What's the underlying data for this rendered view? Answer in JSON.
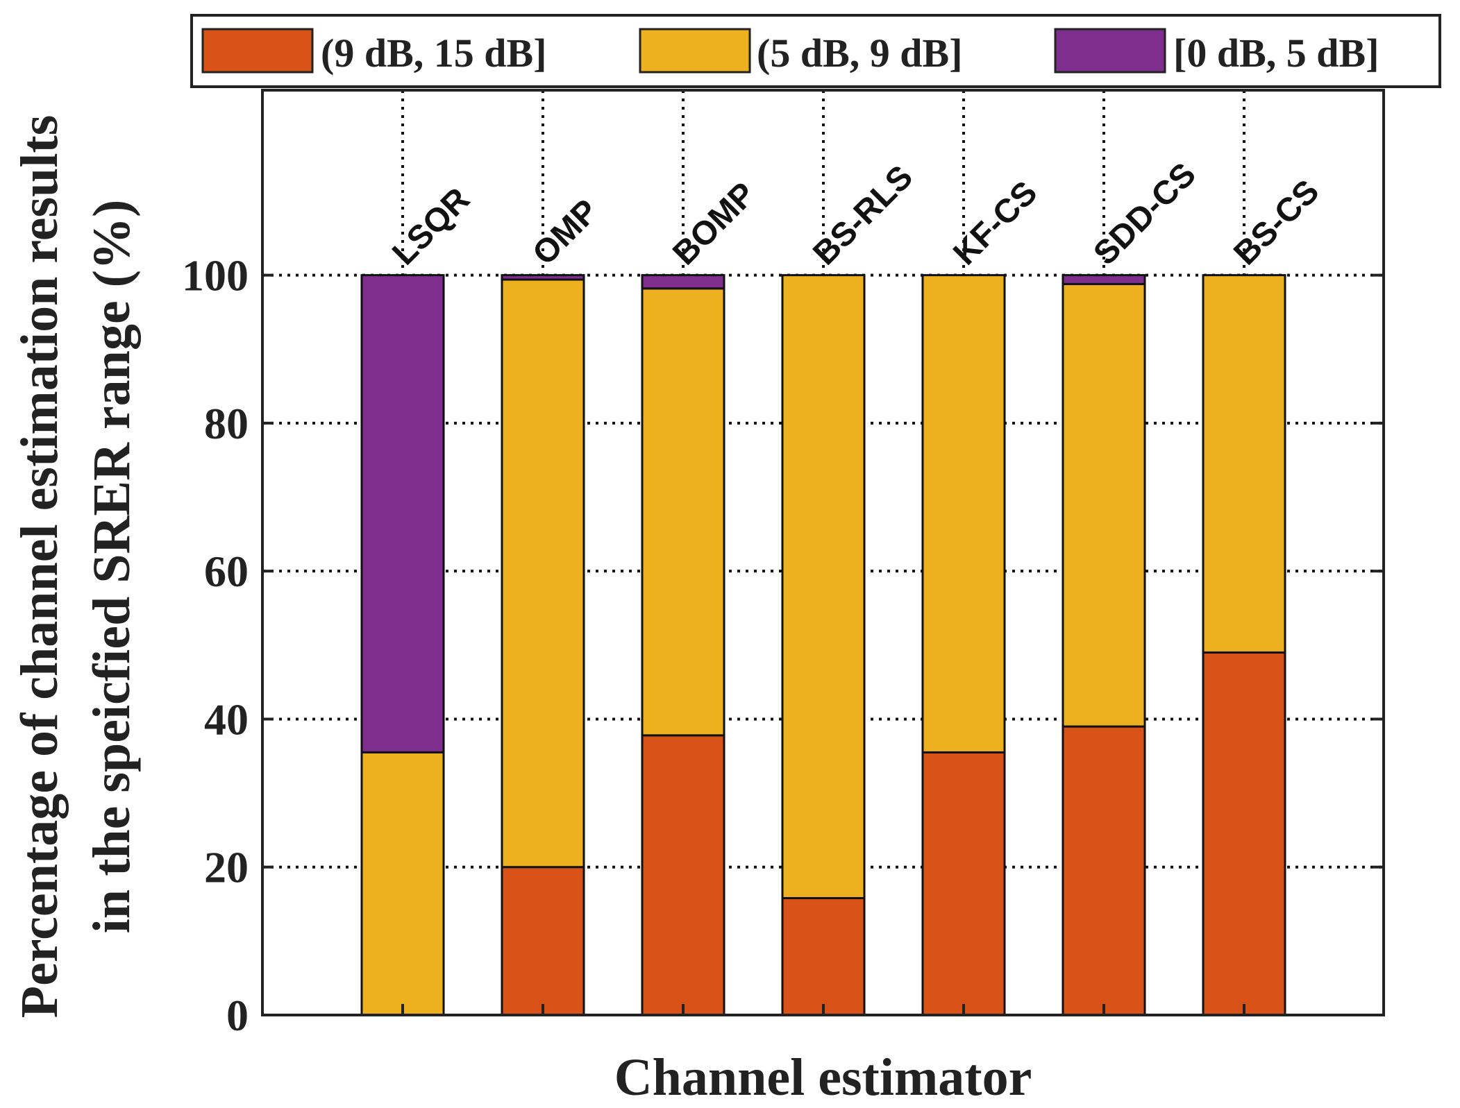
{
  "chart_data": {
    "type": "bar",
    "stacked": true,
    "categories": [
      "LSQR",
      "OMP",
      "BOMP",
      "BS-RLS",
      "KF-CS",
      "SDD-CS",
      "BS-CS"
    ],
    "series": [
      {
        "name": "(9 dB, 15 dB]",
        "color": "#D95319",
        "values": [
          0,
          20,
          37.8,
          15.8,
          35.5,
          39,
          49
        ]
      },
      {
        "name": "(5 dB, 9 dB]",
        "color": "#EDB120",
        "values": [
          35.5,
          79.4,
          60.4,
          84.2,
          64.5,
          59.8,
          51
        ]
      },
      {
        "name": "[0 dB, 5 dB]",
        "color": "#7E2F8E",
        "values": [
          64.5,
          0.6,
          1.8,
          0,
          0,
          1.2,
          0
        ]
      }
    ],
    "xlabel": "Channel estimator",
    "ylabel": [
      "Percentage of channel estimation results",
      "in the speicfied SRER range (%)"
    ],
    "ylim": [
      0,
      125
    ],
    "yticks": [
      0,
      20,
      40,
      60,
      80,
      100
    ],
    "grid": true,
    "legend_position": "top"
  }
}
